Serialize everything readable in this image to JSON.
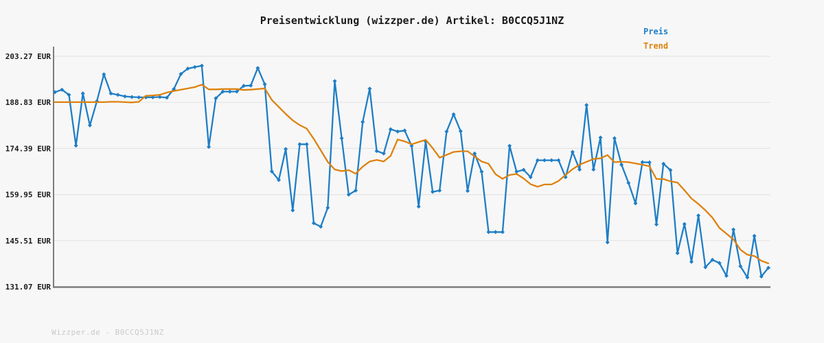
{
  "title": "Preisentwicklung (wizzper.de) Artikel: B0CCQ5J1NZ",
  "footer": "Wizzper.de - B0CCQ5J1NZ",
  "legend": [
    {
      "label": "Preis",
      "color": "#1e7ec6"
    },
    {
      "label": "Trend",
      "color": "#dd820e"
    }
  ],
  "colors": {
    "background": "#f7f7f7",
    "grid": "#e4e4e4",
    "axis": "#7d7d7d",
    "title_text": "#1a1a1a",
    "watermark": "#c9c9c9",
    "price": "#1e7ec6",
    "trend": "#dd820e"
  },
  "chart_data": {
    "type": "line",
    "title": "Preisentwicklung (wizzper.de) Artikel: B0CCQ5J1NZ",
    "xlabel": "",
    "ylabel": "EUR",
    "ylim": [
      131.07,
      203.27
    ],
    "grid": true,
    "legend_position": "top-right",
    "x_tick_labels_visible": false,
    "y_ticks": [
      {
        "value": 203.27,
        "label": "203.27 EUR"
      },
      {
        "value": 188.83,
        "label": "188.83 EUR"
      },
      {
        "value": 174.39,
        "label": "174.39 EUR"
      },
      {
        "value": 159.95,
        "label": "159.95 EUR"
      },
      {
        "value": 145.51,
        "label": "145.51 EUR"
      },
      {
        "value": 131.07,
        "label": "131.07 EUR"
      }
    ],
    "series": [
      {
        "name": "Preis",
        "color": "#1e7ec6",
        "marker": "diamond",
        "values": [
          192.0,
          192.8,
          191.2,
          175.3,
          191.6,
          181.6,
          189.2,
          197.6,
          191.6,
          191.2,
          190.7,
          190.5,
          190.4,
          190.4,
          190.4,
          190.5,
          190.3,
          193.0,
          197.7,
          199.4,
          199.9,
          200.3,
          174.9,
          190.1,
          192.2,
          192.2,
          192.2,
          194.0,
          194.1,
          199.6,
          194.5,
          167.2,
          164.5,
          174.2,
          155.0,
          175.7,
          175.7,
          151.0,
          149.9,
          155.8,
          195.5,
          177.6,
          159.9,
          161.2,
          182.7,
          193.1,
          173.6,
          172.8,
          180.4,
          179.7,
          180.0,
          175.2,
          156.2,
          176.6,
          160.8,
          161.2,
          179.7,
          185.1,
          179.8,
          161.1,
          172.8,
          167.1,
          148.2,
          148.2,
          148.2,
          175.2,
          167.1,
          167.7,
          165.4,
          170.7,
          170.7,
          170.7,
          170.7,
          165.4,
          173.3,
          167.8,
          188.0,
          167.8,
          177.8,
          145.0,
          177.6,
          169.3,
          163.6,
          157.2,
          170.1,
          170.0,
          150.6,
          169.6,
          167.6,
          141.6,
          150.7,
          138.9,
          153.4,
          137.2,
          139.5,
          138.5,
          134.5,
          149.0,
          137.5,
          134.0,
          147.0,
          134.3,
          137.0
        ]
      },
      {
        "name": "Trend",
        "color": "#dd820e",
        "marker": "none",
        "values": [
          188.9,
          188.9,
          188.9,
          188.9,
          188.9,
          188.9,
          188.9,
          188.9,
          189.0,
          189.0,
          188.9,
          188.8,
          189.0,
          190.9,
          191.0,
          191.2,
          191.9,
          192.4,
          192.8,
          193.2,
          193.6,
          194.4,
          192.9,
          192.9,
          193.0,
          193.0,
          193.0,
          192.7,
          192.8,
          193.0,
          193.2,
          189.6,
          187.4,
          185.2,
          183.2,
          181.7,
          180.6,
          177.4,
          173.8,
          170.2,
          167.8,
          167.3,
          167.6,
          166.5,
          168.7,
          170.3,
          170.8,
          170.3,
          172.1,
          177.2,
          176.6,
          175.7,
          176.4,
          177.1,
          174.5,
          171.5,
          172.4,
          173.3,
          173.5,
          173.5,
          171.9,
          170.3,
          169.6,
          166.3,
          164.9,
          166.1,
          166.4,
          165.0,
          163.2,
          162.4,
          163.1,
          163.1,
          164.2,
          166.1,
          167.9,
          169.3,
          170.2,
          171.1,
          171.3,
          172.3,
          170.1,
          170.2,
          170.1,
          169.7,
          169.3,
          168.8,
          164.8,
          164.8,
          164.1,
          163.7,
          161.3,
          158.7,
          157.0,
          155.0,
          152.7,
          149.5,
          147.7,
          145.9,
          142.7,
          141.1,
          140.7,
          139.2,
          138.4
        ]
      }
    ]
  }
}
